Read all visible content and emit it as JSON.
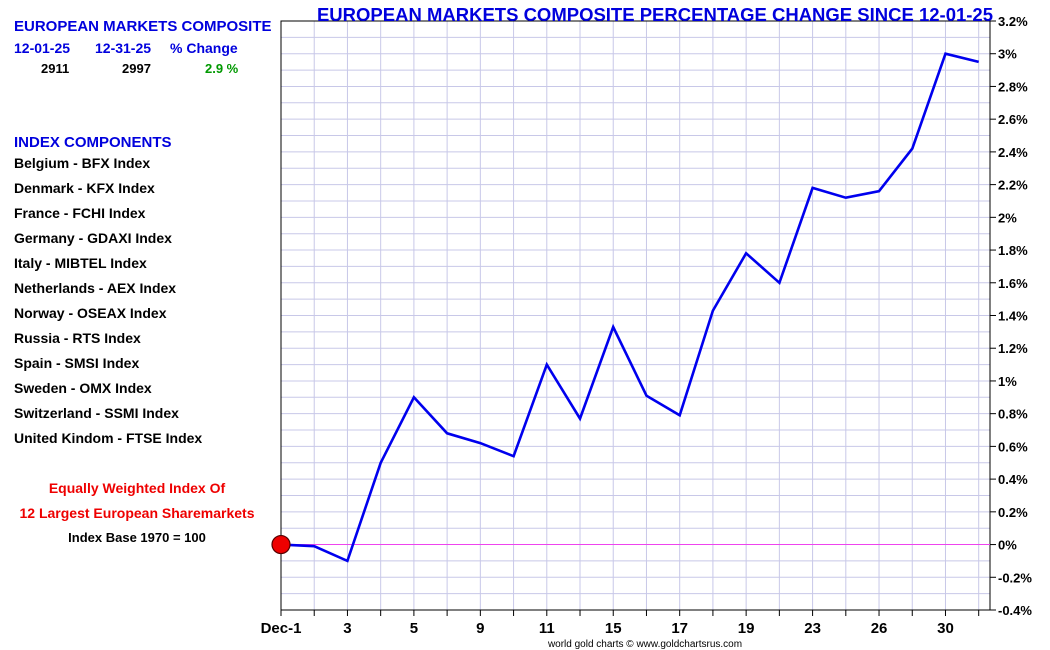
{
  "summary": {
    "title": "EUROPEAN MARKETS COMPOSITE",
    "headers": [
      "12-01-25",
      "12-31-25",
      "% Change"
    ],
    "values": [
      "2911",
      "2997",
      "2.9 %"
    ]
  },
  "components": {
    "heading": "INDEX COMPONENTS",
    "items": [
      "Belgium - BFX Index",
      "Denmark - KFX Index",
      "France - FCHI Index",
      "Germany - GDAXI Index",
      "Italy - MIBTEL Index",
      "Netherlands - AEX Index",
      "Norway - OSEAX Index",
      "Russia - RTS Index",
      "Spain - SMSI Index",
      "Sweden - OMX Index",
      "Switzerland - SSMI Index",
      "United Kindom - FTSE Index"
    ]
  },
  "notes": {
    "line1": "Equally Weighted Index Of",
    "line2": "12 Largest European Sharemarkets",
    "line3": "Index Base 1970 = 100"
  },
  "credit": "world gold charts © www.goldchartsrus.com",
  "colors": {
    "line": "#0000ee",
    "title": "#0000dd",
    "positive": "#009900",
    "note": "#ee0000",
    "zero_line": "#ee44ee",
    "marker": "#ee0000",
    "grid": "#c8c8e8"
  },
  "chart_data": {
    "type": "line",
    "title": "EUROPEAN MARKETS COMPOSITE PERCENTAGE CHANGE SINCE 12-01-25",
    "xlabel": "",
    "ylabel": "",
    "x_tick_labels": [
      "Dec-1",
      "3",
      "5",
      "9",
      "11",
      "15",
      "17",
      "19",
      "23",
      "26",
      "30"
    ],
    "y_tick_labels": [
      "-0.4%",
      "-0.2%",
      "0%",
      "0.2%",
      "0.4%",
      "0.6%",
      "0.8%",
      "1%",
      "1.2%",
      "1.4%",
      "1.6%",
      "1.8%",
      "2%",
      "2.2%",
      "2.4%",
      "2.6%",
      "2.8%",
      "3%",
      "3.2%"
    ],
    "ylim": [
      -0.4,
      3.2
    ],
    "y_axis_side": "right",
    "grid": true,
    "series": [
      {
        "x": [
          "Dec-1",
          "2",
          "3",
          "4",
          "5",
          "8",
          "9",
          "10",
          "11",
          "12",
          "15",
          "16",
          "17",
          "18",
          "19",
          "22",
          "23",
          "24",
          "26",
          "29",
          "30",
          "31"
        ],
        "values": [
          0.0,
          -0.01,
          -0.1,
          0.5,
          0.9,
          0.68,
          0.62,
          0.54,
          1.1,
          0.77,
          1.33,
          0.91,
          0.79,
          1.43,
          1.78,
          1.6,
          2.18,
          2.12,
          2.16,
          2.42,
          3.0,
          2.95
        ]
      }
    ],
    "reference_line": {
      "y": 0,
      "label": ""
    }
  }
}
